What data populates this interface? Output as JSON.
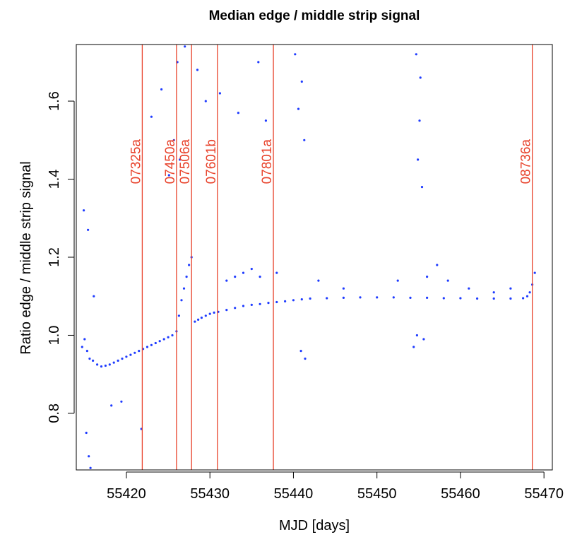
{
  "chart_data": {
    "type": "scatter",
    "title": "Median edge / middle strip signal",
    "xlabel": "MJD [days]",
    "ylabel": "Ratio edge / middle strip signal",
    "xlim": [
      55414.0,
      55471.0
    ],
    "ylim": [
      0.655,
      1.745
    ],
    "xticks": [
      55420,
      55430,
      55440,
      55450,
      55460,
      55470
    ],
    "yticks": [
      0.8,
      1.0,
      1.2,
      1.4,
      1.6
    ],
    "grid": false,
    "point_color": "#1f3cff",
    "line_color": "#e8432c",
    "vertical_lines": [
      {
        "x": 55421.9,
        "label": "07325a"
      },
      {
        "x": 55426.0,
        "label": "07450a"
      },
      {
        "x": 55427.8,
        "label": "07506a"
      },
      {
        "x": 55430.9,
        "label": "07601b"
      },
      {
        "x": 55437.6,
        "label": "07801a"
      },
      {
        "x": 55468.6,
        "label": "08736a"
      }
    ],
    "series": [
      {
        "points": [
          [
            55414.7,
            0.97
          ],
          [
            55415.0,
            0.99
          ],
          [
            55415.3,
            0.96
          ],
          [
            55415.6,
            0.94
          ],
          [
            55416.0,
            0.935
          ],
          [
            55416.5,
            0.925
          ],
          [
            55417.0,
            0.92
          ],
          [
            55417.5,
            0.922
          ],
          [
            55418.0,
            0.925
          ],
          [
            55418.5,
            0.93
          ],
          [
            55419.0,
            0.935
          ],
          [
            55419.5,
            0.94
          ],
          [
            55420.0,
            0.945
          ],
          [
            55420.5,
            0.95
          ],
          [
            55421.0,
            0.955
          ],
          [
            55421.5,
            0.96
          ],
          [
            55422.0,
            0.965
          ],
          [
            55422.5,
            0.97
          ],
          [
            55423.0,
            0.975
          ],
          [
            55423.5,
            0.98
          ],
          [
            55424.0,
            0.985
          ],
          [
            55424.5,
            0.99
          ],
          [
            55425.0,
            0.995
          ],
          [
            55425.5,
            1.0
          ],
          [
            55426.0,
            1.01
          ],
          [
            55426.3,
            1.05
          ],
          [
            55426.6,
            1.09
          ],
          [
            55426.9,
            1.12
          ],
          [
            55427.2,
            1.15
          ],
          [
            55427.5,
            1.18
          ],
          [
            55427.8,
            1.2
          ],
          [
            55428.2,
            1.035
          ],
          [
            55428.6,
            1.04
          ],
          [
            55429.0,
            1.045
          ],
          [
            55429.5,
            1.05
          ],
          [
            55430.0,
            1.055
          ],
          [
            55430.5,
            1.058
          ],
          [
            55431.0,
            1.06
          ],
          [
            55432.0,
            1.065
          ],
          [
            55433.0,
            1.07
          ],
          [
            55434.0,
            1.075
          ],
          [
            55435.0,
            1.078
          ],
          [
            55436.0,
            1.08
          ],
          [
            55437.0,
            1.083
          ],
          [
            55438.0,
            1.085
          ],
          [
            55439.0,
            1.087
          ],
          [
            55440.0,
            1.09
          ],
          [
            55441.0,
            1.092
          ],
          [
            55442.0,
            1.094
          ],
          [
            55444.0,
            1.095
          ],
          [
            55446.0,
            1.096
          ],
          [
            55448.0,
            1.097
          ],
          [
            55450.0,
            1.097
          ],
          [
            55452.0,
            1.097
          ],
          [
            55454.0,
            1.096
          ],
          [
            55456.0,
            1.096
          ],
          [
            55458.0,
            1.095
          ],
          [
            55460.0,
            1.095
          ],
          [
            55462.0,
            1.094
          ],
          [
            55464.0,
            1.094
          ],
          [
            55466.0,
            1.094
          ],
          [
            55467.5,
            1.095
          ],
          [
            55468.0,
            1.1
          ],
          [
            55468.3,
            1.11
          ],
          [
            55468.6,
            1.13
          ],
          [
            55468.9,
            1.16
          ],
          [
            55414.9,
            1.32
          ],
          [
            55415.4,
            1.27
          ],
          [
            55416.1,
            1.1
          ],
          [
            55415.2,
            0.75
          ],
          [
            55415.5,
            0.69
          ],
          [
            55415.7,
            0.66
          ],
          [
            55418.2,
            0.82
          ],
          [
            55419.4,
            0.83
          ],
          [
            55421.8,
            0.76
          ],
          [
            55423.0,
            1.56
          ],
          [
            55424.2,
            1.63
          ],
          [
            55425.1,
            1.41
          ],
          [
            55425.7,
            1.5
          ],
          [
            55426.1,
            1.7
          ],
          [
            55426.4,
            1.45
          ],
          [
            55427.0,
            1.74
          ],
          [
            55428.5,
            1.68
          ],
          [
            55429.5,
            1.6
          ],
          [
            55431.2,
            1.62
          ],
          [
            55433.4,
            1.57
          ],
          [
            55435.8,
            1.7
          ],
          [
            55436.7,
            1.55
          ],
          [
            55440.2,
            1.72
          ],
          [
            55440.6,
            1.58
          ],
          [
            55441.0,
            1.65
          ],
          [
            55441.3,
            1.5
          ],
          [
            55440.9,
            0.96
          ],
          [
            55441.4,
            0.94
          ],
          [
            55454.7,
            1.72
          ],
          [
            55455.2,
            1.66
          ],
          [
            55455.1,
            1.55
          ],
          [
            55454.9,
            1.45
          ],
          [
            55455.4,
            1.38
          ],
          [
            55454.4,
            0.97
          ],
          [
            55454.8,
            1.0
          ],
          [
            55455.6,
            0.99
          ],
          [
            55432.0,
            1.14
          ],
          [
            55433.0,
            1.15
          ],
          [
            55434.0,
            1.16
          ],
          [
            55435.0,
            1.17
          ],
          [
            55436.0,
            1.15
          ],
          [
            55438.0,
            1.16
          ],
          [
            55443.0,
            1.14
          ],
          [
            55446.0,
            1.12
          ],
          [
            55452.5,
            1.14
          ],
          [
            55456.0,
            1.15
          ],
          [
            55457.2,
            1.18
          ],
          [
            55458.5,
            1.14
          ],
          [
            55461.0,
            1.12
          ],
          [
            55464.0,
            1.11
          ],
          [
            55466.0,
            1.12
          ]
        ]
      }
    ]
  }
}
